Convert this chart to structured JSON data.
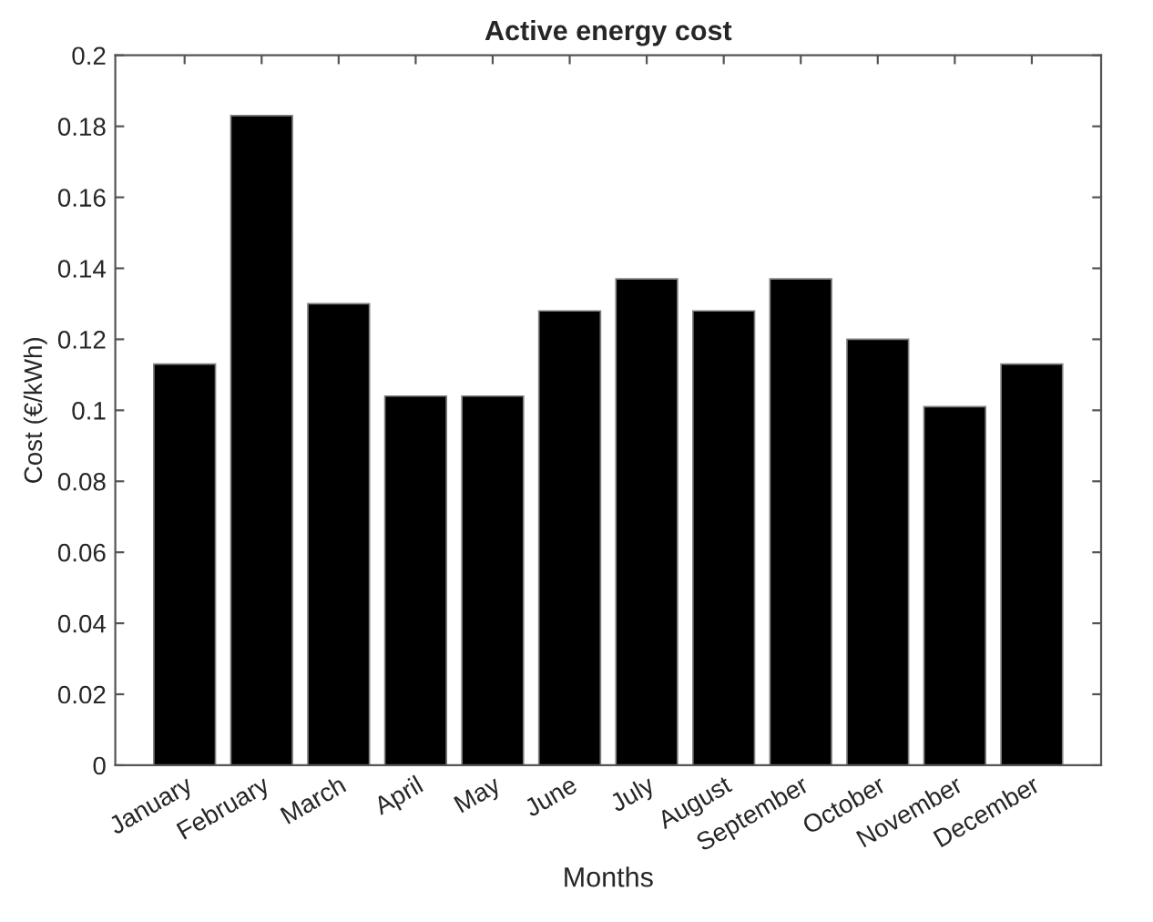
{
  "chart_data": {
    "type": "bar",
    "title": "Active energy cost",
    "xlabel": "Months",
    "ylabel": "Cost (€/kWh)",
    "categories": [
      "January",
      "February",
      "March",
      "April",
      "May",
      "June",
      "July",
      "August",
      "September",
      "October",
      "November",
      "December"
    ],
    "values": [
      0.113,
      0.183,
      0.13,
      0.104,
      0.104,
      0.128,
      0.137,
      0.128,
      0.137,
      0.12,
      0.101,
      0.113
    ],
    "color": "#000000",
    "ylim": [
      0,
      0.2
    ],
    "yticks": [
      0,
      0.02,
      0.04,
      0.06,
      0.08,
      {
        "value": 0.1,
        "label": "0.1"
      },
      0.12,
      0.14,
      0.16,
      0.18,
      {
        "value": 0.2,
        "label": "0.2"
      }
    ],
    "grid": false
  }
}
